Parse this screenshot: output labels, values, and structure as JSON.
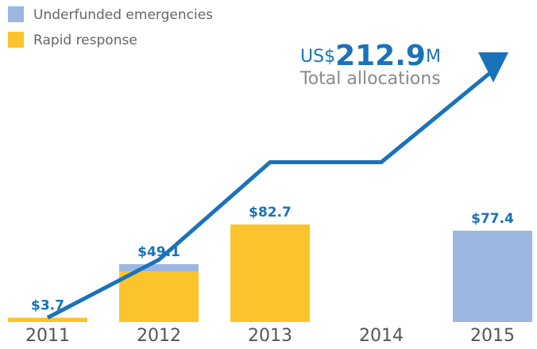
{
  "chart_data": {
    "type": "bar",
    "stacked": true,
    "categories": [
      "2011",
      "2012",
      "2013",
      "2014",
      "2015"
    ],
    "series": [
      {
        "name": "Underfunded emergencies",
        "color": "#9bb7df",
        "values": [
          null,
          6.1,
          null,
          null,
          77.4
        ]
      },
      {
        "name": "Rapid response",
        "color": "#fcc42c",
        "values": [
          3.7,
          43,
          82.7,
          null,
          null
        ]
      }
    ],
    "totals": [
      3.7,
      49.1,
      82.7,
      null,
      77.4
    ],
    "total_labels": [
      "$3.7",
      "$49.1",
      "$82.7",
      null,
      "$77.4"
    ],
    "line": {
      "name": "Total allocations",
      "color": "#1a72bb",
      "values": [
        3.7,
        52.8,
        135.5,
        135.5,
        212.9
      ]
    },
    "annotation": {
      "prefix": "US$",
      "value": "212.9",
      "suffix": "M",
      "text": "Total allocations"
    },
    "ylim": [
      0,
      273
    ],
    "legend": "top-left"
  }
}
